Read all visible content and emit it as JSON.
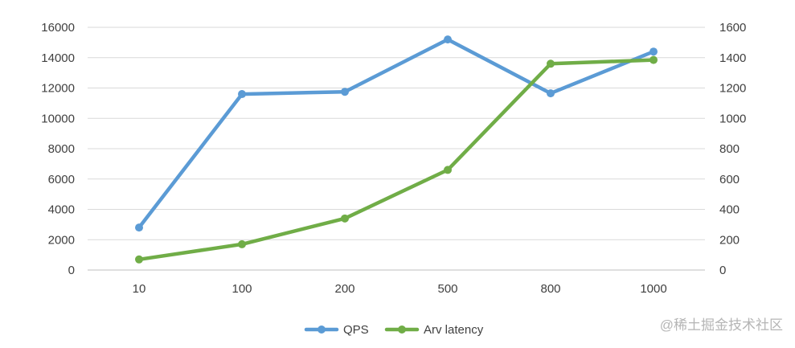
{
  "chart_data": {
    "type": "line",
    "categories": [
      "10",
      "100",
      "200",
      "500",
      "800",
      "1000"
    ],
    "series": [
      {
        "name": "QPS",
        "axis": "left",
        "color": "#5b9bd5",
        "values": [
          2800,
          11600,
          11750,
          15200,
          11650,
          14400
        ]
      },
      {
        "name": "Arv latency",
        "axis": "right",
        "color": "#70ad47",
        "values": [
          70,
          170,
          340,
          660,
          1360,
          1385
        ]
      }
    ],
    "y_left": {
      "min": 0,
      "max": 16000,
      "step": 2000,
      "tick_labels": [
        "0",
        "2000",
        "4000",
        "6000",
        "8000",
        "10000",
        "12000",
        "14000",
        "16000"
      ]
    },
    "y_right": {
      "min": 0,
      "max": 1600,
      "step": 200,
      "tick_labels": [
        "0",
        "200",
        "400",
        "600",
        "800",
        "1000",
        "1200",
        "1400",
        "1600"
      ]
    },
    "grid": true,
    "legend_position": "bottom"
  },
  "watermark": "@稀土掘金技术社区"
}
